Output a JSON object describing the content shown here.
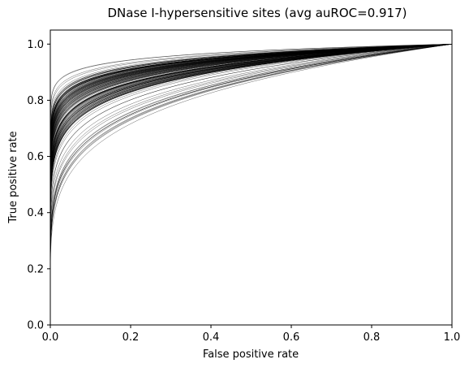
{
  "chart_data": {
    "type": "line",
    "title": "DNase I-hypersensitive sites (avg auROC=0.917)",
    "xlabel": "False positive rate",
    "ylabel": "True positive rate",
    "xlim": [
      0.0,
      1.0
    ],
    "ylim": [
      0.0,
      1.05
    ],
    "xticks": [
      "0.0",
      "0.2",
      "0.4",
      "0.6",
      "0.8",
      "1.0"
    ],
    "yticks": [
      "0.0",
      "0.2",
      "0.4",
      "0.6",
      "0.8",
      "1.0"
    ],
    "avg_auroc": 0.917,
    "auroc_range_approx": [
      0.82,
      0.97
    ],
    "num_curves_approx": 150,
    "line_color": "#000000",
    "grid": false,
    "legend": "none"
  }
}
